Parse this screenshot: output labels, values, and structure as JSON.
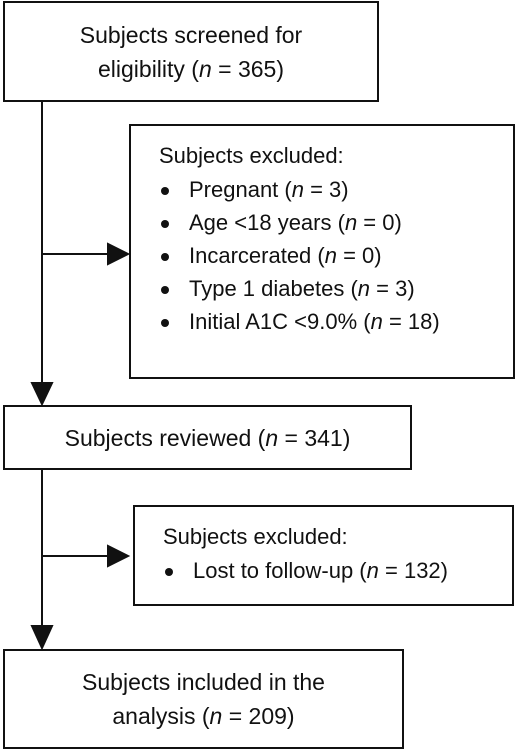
{
  "flow": {
    "screened": {
      "line1": "Subjects screened for",
      "line2_prefix": "eligibility (",
      "n_var": "n",
      "line2_suffix": " = 365)"
    },
    "excluded1": {
      "title": "Subjects excluded:",
      "items": [
        {
          "prefix": "Pregnant (",
          "n_var": "n",
          "suffix": " = 3)"
        },
        {
          "prefix": "Age <18 years (",
          "n_var": "n",
          "suffix": " = 0)"
        },
        {
          "prefix": "Incarcerated (",
          "n_var": "n",
          "suffix": " = 0)"
        },
        {
          "prefix": "Type 1 diabetes (",
          "n_var": "n",
          "suffix": " = 3)"
        },
        {
          "prefix": "Initial A1C <9.0% (",
          "n_var": "n",
          "suffix": " = 18)"
        }
      ]
    },
    "reviewed": {
      "prefix": "Subjects reviewed (",
      "n_var": "n",
      "suffix": " = 341)"
    },
    "excluded2": {
      "title": "Subjects excluded:",
      "items": [
        {
          "prefix": "Lost to follow-up (",
          "n_var": "n",
          "suffix": " = 132)"
        }
      ]
    },
    "included": {
      "line1": "Subjects included in the",
      "line2_prefix": "analysis (",
      "n_var": "n",
      "line2_suffix": " = 209)"
    }
  }
}
